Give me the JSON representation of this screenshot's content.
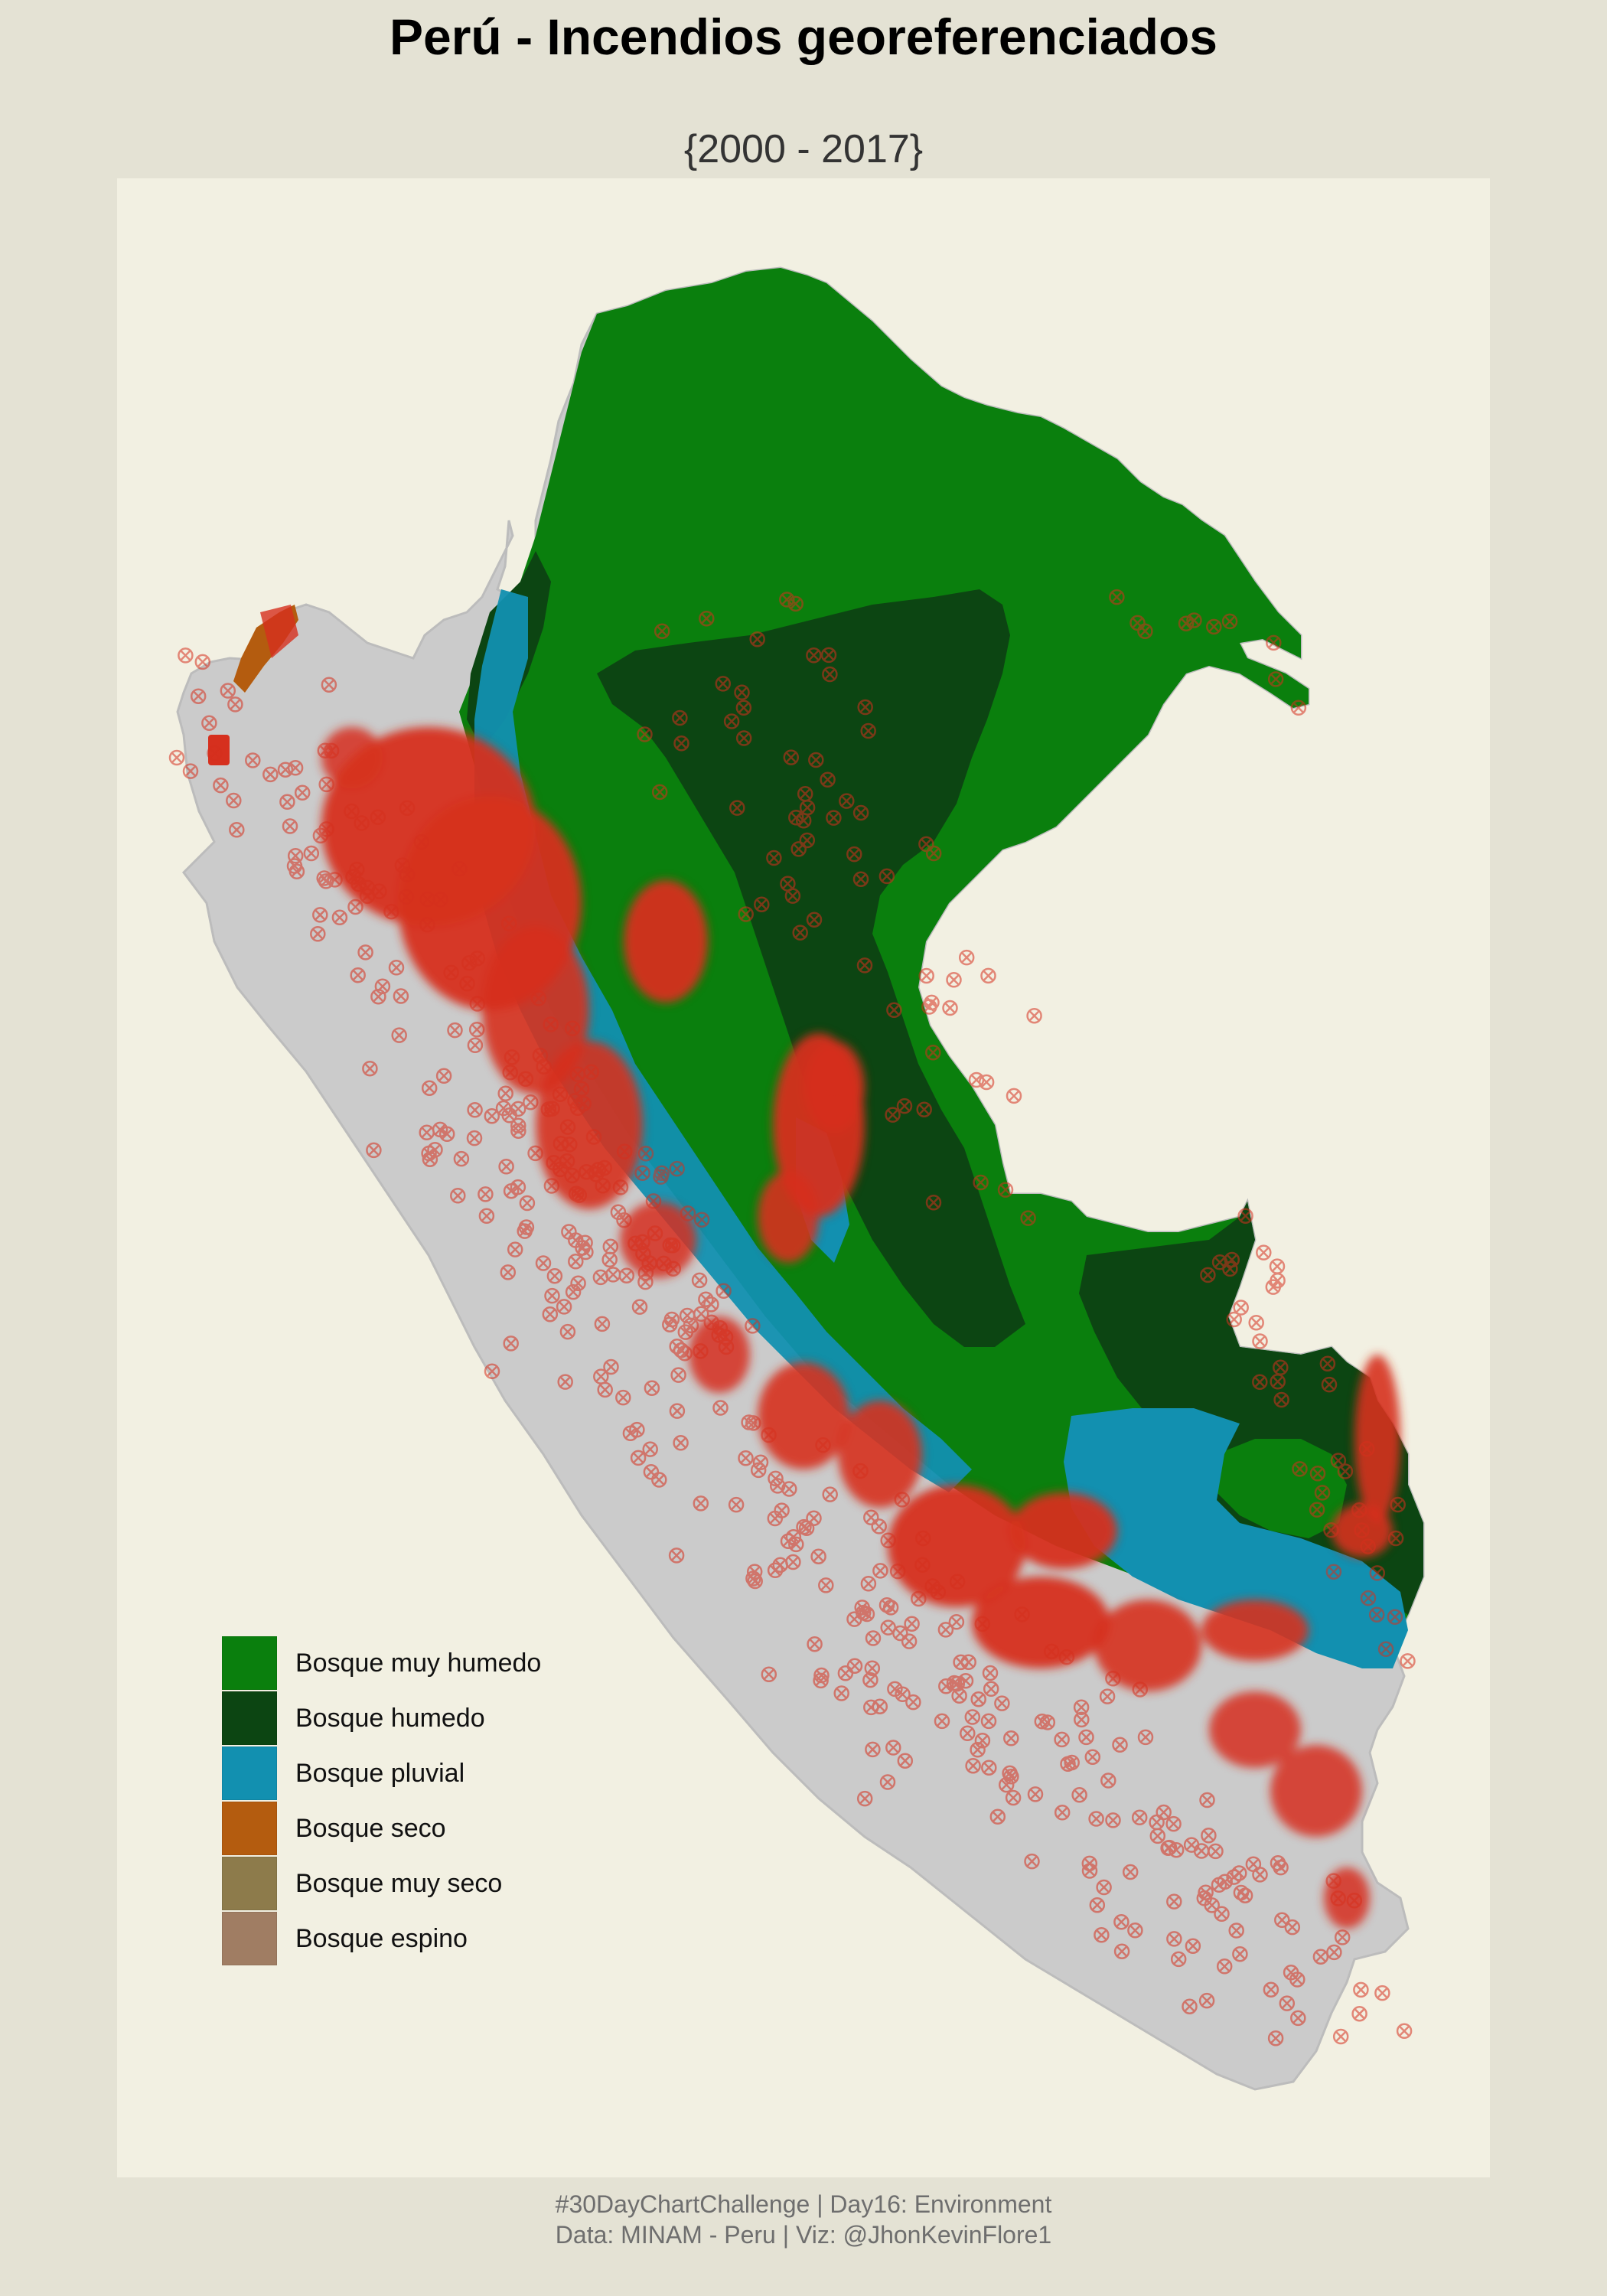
{
  "header": {
    "title": "Perú - Incendios georeferenciados",
    "subtitle": "{2000 - 2017}"
  },
  "legend": {
    "items": [
      {
        "label": "Bosque muy humedo",
        "color": "#0a7f0d"
      },
      {
        "label": "Bosque humedo",
        "color": "#0c4512"
      },
      {
        "label": "Bosque pluvial",
        "color": "#1290b0"
      },
      {
        "label": "Bosque seco",
        "color": "#b45c0f"
      },
      {
        "label": "Bosque muy seco",
        "color": "#8d7b4b"
      },
      {
        "label": "Bosque espino",
        "color": "#a07d63"
      }
    ]
  },
  "colors": {
    "page_background": "#e4e2d4",
    "panel_background": "#f2f0e2",
    "land_nonforest": "#cbcbcb",
    "fire_points": "#d6301e"
  },
  "caption": {
    "line1": "#30DayChartChallenge | Day16: Environment",
    "line2": "Data: MINAM - Peru | Viz: @JhonKevinFlore1"
  }
}
